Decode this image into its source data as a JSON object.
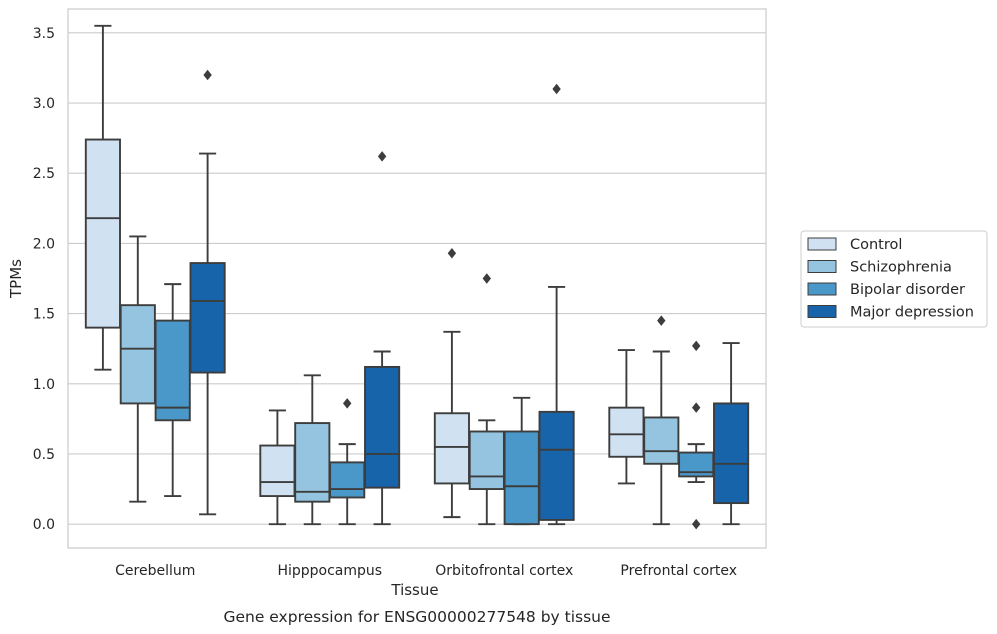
{
  "chart_data": {
    "type": "boxplot",
    "caption": "Gene expression for ENSG00000277548 by tissue",
    "xlabel": "Tissue",
    "ylabel": "TPMs",
    "ylim": [
      -0.17,
      3.67
    ],
    "yticks": [
      0.0,
      0.5,
      1.0,
      1.5,
      2.0,
      2.5,
      3.0,
      3.5
    ],
    "ytick_labels": [
      "0.0",
      "0.5",
      "1.0",
      "1.5",
      "2.0",
      "2.5",
      "3.0",
      "3.5"
    ],
    "grid": "horizontal",
    "legend_position": "right",
    "categories": [
      "Cerebellum",
      "Hipppocampus",
      "Orbitofrontal cortex",
      "Prefrontal cortex"
    ],
    "series": [
      {
        "name": "Control",
        "color": "#d0e1f2",
        "boxes": [
          {
            "whislo": 1.1,
            "q1": 1.4,
            "med": 2.18,
            "q3": 2.74,
            "whishi": 3.55,
            "fliers": []
          },
          {
            "whislo": 0.0,
            "q1": 0.2,
            "med": 0.3,
            "q3": 0.56,
            "whishi": 0.81,
            "fliers": []
          },
          {
            "whislo": 0.05,
            "q1": 0.29,
            "med": 0.55,
            "q3": 0.79,
            "whishi": 1.37,
            "fliers": [
              1.93
            ]
          },
          {
            "whislo": 0.29,
            "q1": 0.48,
            "med": 0.64,
            "q3": 0.83,
            "whishi": 1.24,
            "fliers": []
          }
        ]
      },
      {
        "name": "Schizophrenia",
        "color": "#94c4df",
        "boxes": [
          {
            "whislo": 0.16,
            "q1": 0.86,
            "med": 1.25,
            "q3": 1.56,
            "whishi": 2.05,
            "fliers": []
          },
          {
            "whislo": 0.0,
            "q1": 0.16,
            "med": 0.23,
            "q3": 0.72,
            "whishi": 1.06,
            "fliers": []
          },
          {
            "whislo": 0.0,
            "q1": 0.25,
            "med": 0.34,
            "q3": 0.66,
            "whishi": 0.74,
            "fliers": [
              1.75
            ]
          },
          {
            "whislo": 0.0,
            "q1": 0.43,
            "med": 0.52,
            "q3": 0.76,
            "whishi": 1.23,
            "fliers": [
              1.45
            ]
          }
        ]
      },
      {
        "name": "Bipolar disorder",
        "color": "#4a98c9",
        "boxes": [
          {
            "whislo": 0.2,
            "q1": 0.74,
            "med": 0.83,
            "q3": 1.45,
            "whishi": 1.71,
            "fliers": []
          },
          {
            "whislo": 0.0,
            "q1": 0.19,
            "med": 0.25,
            "q3": 0.44,
            "whishi": 0.57,
            "fliers": [
              0.86
            ]
          },
          {
            "whislo": 0.0,
            "q1": 0.0,
            "med": 0.27,
            "q3": 0.66,
            "whishi": 0.9,
            "fliers": []
          },
          {
            "whislo": 0.3,
            "q1": 0.34,
            "med": 0.37,
            "q3": 0.51,
            "whishi": 0.57,
            "fliers": [
              1.27,
              0.83,
              0.0
            ]
          }
        ]
      },
      {
        "name": "Major depression",
        "color": "#1764ab",
        "boxes": [
          {
            "whislo": 0.07,
            "q1": 1.08,
            "med": 1.59,
            "q3": 1.86,
            "whishi": 2.64,
            "fliers": [
              3.2
            ]
          },
          {
            "whislo": 0.0,
            "q1": 0.26,
            "med": 0.5,
            "q3": 1.12,
            "whishi": 1.23,
            "fliers": [
              2.62
            ]
          },
          {
            "whislo": 0.0,
            "q1": 0.03,
            "med": 0.53,
            "q3": 0.8,
            "whishi": 1.69,
            "fliers": [
              3.1
            ]
          },
          {
            "whislo": 0.0,
            "q1": 0.15,
            "med": 0.43,
            "q3": 0.86,
            "whishi": 1.29,
            "fliers": []
          }
        ]
      }
    ]
  }
}
